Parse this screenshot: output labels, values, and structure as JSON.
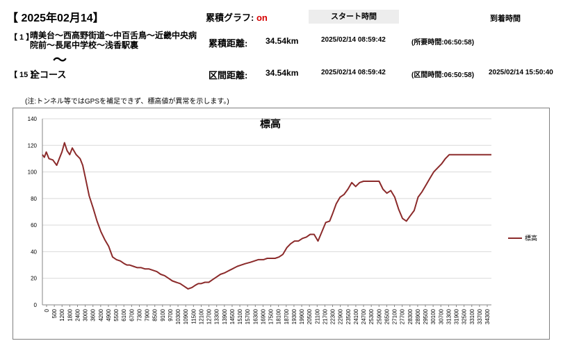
{
  "header": {
    "date_title": "【 2025年02月14】",
    "graph_label": "累積グラフ:",
    "graph_state": "on",
    "start_header": "スタート時間",
    "arrive_header": "到着時間"
  },
  "route": {
    "from_no": "【 1 】",
    "from_name": "晴美台～西高野街道～中百舌鳥～近畿中央病院前～長尾中学校～浅香駅裏",
    "tilde": "～",
    "to_no": "【 15 】",
    "to_name": "全コース"
  },
  "rows": [
    {
      "label": "累積距離:",
      "distance": "34.54km",
      "start": "2025/02/14 08:59:42",
      "elapsed": "(所要時間:06:50:58)",
      "arrive": ""
    },
    {
      "label": "区間距離:",
      "distance": "34.54km",
      "start": "2025/02/14 08:59:42",
      "elapsed": "(区間時間:06:50:58)",
      "arrive": "2025/02/14 15:50:40"
    }
  ],
  "note": "(注:トンネル等ではGPSを補足できず、標高値が異常を示します。)",
  "chart_data": {
    "type": "line",
    "title": "標高",
    "xlabel": "",
    "ylabel": "",
    "xlim": [
      0,
      34540
    ],
    "ylim": [
      0,
      140
    ],
    "yticks": [
      "0",
      "20",
      "40",
      "60",
      "80",
      "100",
      "120",
      "140"
    ],
    "xticks": [
      "0",
      "500",
      "1200",
      "1800",
      "2400",
      "3000",
      "3600",
      "4200",
      "4900",
      "5500",
      "6100",
      "6700",
      "7300",
      "7900",
      "8500",
      "9100",
      "9700",
      "10300",
      "10900",
      "11500",
      "12100",
      "12700",
      "13300",
      "13900",
      "14500",
      "15100",
      "15700",
      "16300",
      "16900",
      "17500",
      "18100",
      "18700",
      "19300",
      "19900",
      "20500",
      "21100",
      "21700",
      "22300",
      "22900",
      "23500",
      "24100",
      "24700",
      "25300",
      "25900",
      "26500",
      "27100",
      "27700",
      "28300",
      "28900",
      "29500",
      "30100",
      "30700",
      "31300",
      "31900",
      "32500",
      "33100",
      "33700",
      "34300"
    ],
    "grid": "horizontal",
    "legend_position": "right",
    "series": [
      {
        "name": "標高",
        "color": "#8b2a2a",
        "x": [
          0,
          150,
          300,
          500,
          800,
          1100,
          1300,
          1500,
          1700,
          1900,
          2100,
          2300,
          2600,
          2900,
          3100,
          3300,
          3600,
          3900,
          4200,
          4500,
          4800,
          5100,
          5400,
          5700,
          6000,
          6300,
          6500,
          6700,
          7000,
          7300,
          7600,
          7900,
          8200,
          8500,
          8800,
          9100,
          9400,
          9700,
          10000,
          10300,
          10600,
          10900,
          11200,
          11500,
          11800,
          12000,
          12200,
          12500,
          12800,
          13100,
          13400,
          13700,
          14000,
          14200,
          14400,
          14600,
          14800,
          15000,
          15300,
          15600,
          16000,
          16300,
          16600,
          17000,
          17300,
          17600,
          17900,
          18200,
          18500,
          18800,
          19100,
          19400,
          19700,
          20000,
          20300,
          20600,
          20900,
          21200,
          21500,
          21800,
          22100,
          22300,
          22600,
          22900,
          23200,
          23500,
          23800,
          24100,
          24400,
          24700,
          25000,
          25300,
          25600,
          25900,
          26200,
          26500,
          26800,
          27100,
          27400,
          27700,
          28000,
          28300,
          28600,
          28900,
          29200,
          29500,
          29800,
          30100,
          30400,
          30700,
          31000,
          31300,
          31600,
          31900,
          32100,
          32300,
          32500,
          32800,
          33100,
          33400,
          33700,
          34000,
          34300,
          34540
        ],
        "y": [
          113,
          111,
          115,
          110,
          109,
          105,
          110,
          115,
          122,
          116,
          113,
          118,
          113,
          110,
          105,
          96,
          82,
          73,
          63,
          55,
          49,
          44,
          36,
          34,
          33,
          31,
          30,
          30,
          29,
          28,
          28,
          27,
          27,
          26,
          25,
          23,
          22,
          20,
          18,
          17,
          16,
          14,
          12,
          13,
          15,
          16,
          16,
          17,
          17,
          19,
          21,
          23,
          24,
          25,
          26,
          27,
          28,
          29,
          30,
          31,
          32,
          33,
          34,
          34,
          35,
          35,
          35,
          36,
          38,
          43,
          46,
          48,
          48,
          50,
          51,
          53,
          53,
          48,
          55,
          62,
          63,
          68,
          76,
          81,
          83,
          87,
          92,
          89,
          92,
          93,
          93,
          93,
          93,
          93,
          87,
          84,
          86,
          81,
          72,
          65,
          63,
          67,
          71,
          81,
          85,
          90,
          95,
          100,
          103,
          106,
          110,
          113,
          113,
          113,
          113,
          113,
          113,
          113,
          113,
          113,
          113,
          113,
          113,
          113
        ]
      }
    ]
  }
}
